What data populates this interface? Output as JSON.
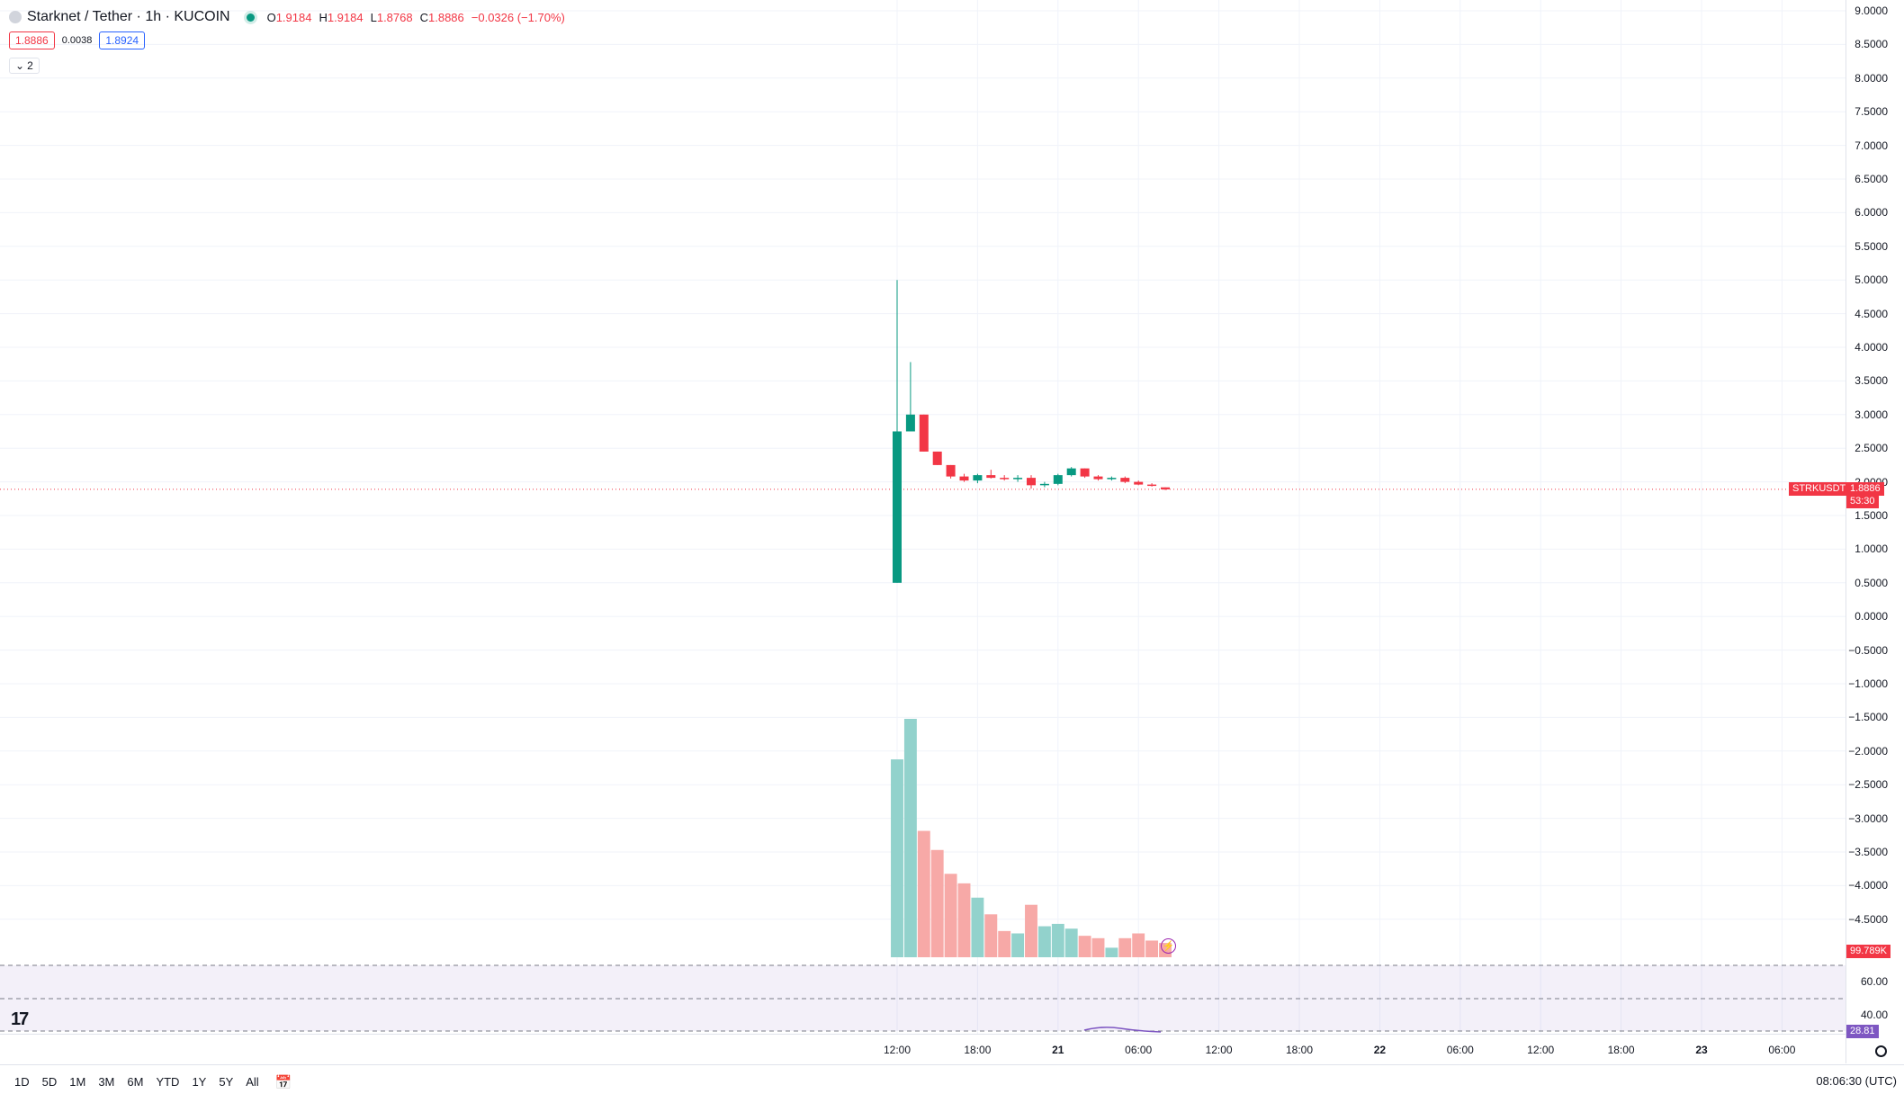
{
  "header": {
    "symbol_title": "Starknet / Tether · 1h · KUCOIN",
    "ohlc": [
      {
        "key": "O",
        "value": "1.9184"
      },
      {
        "key": "H",
        "value": "1.9184"
      },
      {
        "key": "L",
        "value": "1.8768"
      },
      {
        "key": "C",
        "value": "1.8886"
      }
    ],
    "change": "−0.0326 (−1.70%)"
  },
  "quote": {
    "bid": "1.8886",
    "spread": "0.0038",
    "ask": "1.8924"
  },
  "indicators_collapse": {
    "count": "2"
  },
  "price_axis": [
    "9.0000",
    "8.5000",
    "8.0000",
    "7.5000",
    "7.0000",
    "6.5000",
    "6.0000",
    "5.5000",
    "5.0000",
    "4.5000",
    "4.0000",
    "3.5000",
    "3.0000",
    "2.5000",
    "2.0000",
    "1.5000",
    "1.0000",
    "0.5000",
    "0.0000",
    "−0.5000",
    "−1.0000",
    "−1.5000",
    "−2.0000",
    "−2.5000",
    "−3.0000",
    "−3.5000",
    "−4.0000",
    "−4.5000"
  ],
  "rsi_axis": [
    "60.00",
    "40.00"
  ],
  "time_axis": [
    {
      "label": "12:00",
      "bold": false
    },
    {
      "label": "18:00",
      "bold": false
    },
    {
      "label": "21",
      "bold": true
    },
    {
      "label": "06:00",
      "bold": false
    },
    {
      "label": "12:00",
      "bold": false
    },
    {
      "label": "18:00",
      "bold": false
    },
    {
      "label": "22",
      "bold": true
    },
    {
      "label": "06:00",
      "bold": false
    },
    {
      "label": "12:00",
      "bold": false
    },
    {
      "label": "18:00",
      "bold": false
    },
    {
      "label": "23",
      "bold": true
    },
    {
      "label": "06:00",
      "bold": false
    }
  ],
  "tags": {
    "symbol": "STRKUSDT",
    "last_price": "1.8886",
    "countdown": "53:30",
    "volume": "99.789K",
    "rsi": "28.81"
  },
  "colors": {
    "up": "#089981",
    "down": "#f23645",
    "up_vol": "#92d2cc",
    "down_vol": "#f7a9a7",
    "rsi": "#7e57c2"
  },
  "bottom_bar": {
    "ranges": [
      "1D",
      "5D",
      "1M",
      "3M",
      "6M",
      "YTD",
      "1Y",
      "5Y",
      "All"
    ],
    "time": "08:06:30 (UTC)"
  },
  "chart_data": {
    "type": "candlestick",
    "symbol": "STRKUSDT",
    "interval": "1h",
    "ylim": [
      -4.75,
      9.0
    ],
    "x_start_time": "20 12:00",
    "candles": [
      {
        "o": 0.5,
        "h": 5.0,
        "l": 0.5,
        "c": 2.75
      },
      {
        "o": 2.75,
        "h": 3.78,
        "l": 2.75,
        "c": 3.0
      },
      {
        "o": 3.0,
        "h": 3.0,
        "l": 2.45,
        "c": 2.45
      },
      {
        "o": 2.45,
        "h": 2.45,
        "l": 2.25,
        "c": 2.25
      },
      {
        "o": 2.25,
        "h": 2.25,
        "l": 2.05,
        "c": 2.08
      },
      {
        "o": 2.08,
        "h": 2.12,
        "l": 2.0,
        "c": 2.02
      },
      {
        "o": 2.02,
        "h": 2.12,
        "l": 1.98,
        "c": 2.1
      },
      {
        "o": 2.1,
        "h": 2.18,
        "l": 2.05,
        "c": 2.06
      },
      {
        "o": 2.06,
        "h": 2.1,
        "l": 2.02,
        "c": 2.04
      },
      {
        "o": 2.04,
        "h": 2.1,
        "l": 2.0,
        "c": 2.06
      },
      {
        "o": 2.06,
        "h": 2.1,
        "l": 1.9,
        "c": 1.95
      },
      {
        "o": 1.95,
        "h": 2.0,
        "l": 1.92,
        "c": 1.97
      },
      {
        "o": 1.97,
        "h": 2.12,
        "l": 1.95,
        "c": 2.1
      },
      {
        "o": 2.1,
        "h": 2.22,
        "l": 2.08,
        "c": 2.2
      },
      {
        "o": 2.2,
        "h": 2.2,
        "l": 2.06,
        "c": 2.08
      },
      {
        "o": 2.08,
        "h": 2.1,
        "l": 2.02,
        "c": 2.04
      },
      {
        "o": 2.04,
        "h": 2.08,
        "l": 2.02,
        "c": 2.06
      },
      {
        "o": 2.06,
        "h": 2.08,
        "l": 1.98,
        "c": 2.0
      },
      {
        "o": 2.0,
        "h": 2.02,
        "l": 1.95,
        "c": 1.96
      },
      {
        "o": 1.96,
        "h": 1.98,
        "l": 1.93,
        "c": 1.94
      },
      {
        "o": 1.9184,
        "h": 1.9184,
        "l": 1.8768,
        "c": 1.8886
      }
    ],
    "volume_relative": [
      0.83,
      1.0,
      0.53,
      0.45,
      0.35,
      0.31,
      0.25,
      0.18,
      0.11,
      0.1,
      0.22,
      0.13,
      0.14,
      0.12,
      0.09,
      0.08,
      0.04,
      0.08,
      0.1,
      0.07,
      0.06
    ],
    "last_volume": "99.789K",
    "rsi_last": 28.81
  }
}
